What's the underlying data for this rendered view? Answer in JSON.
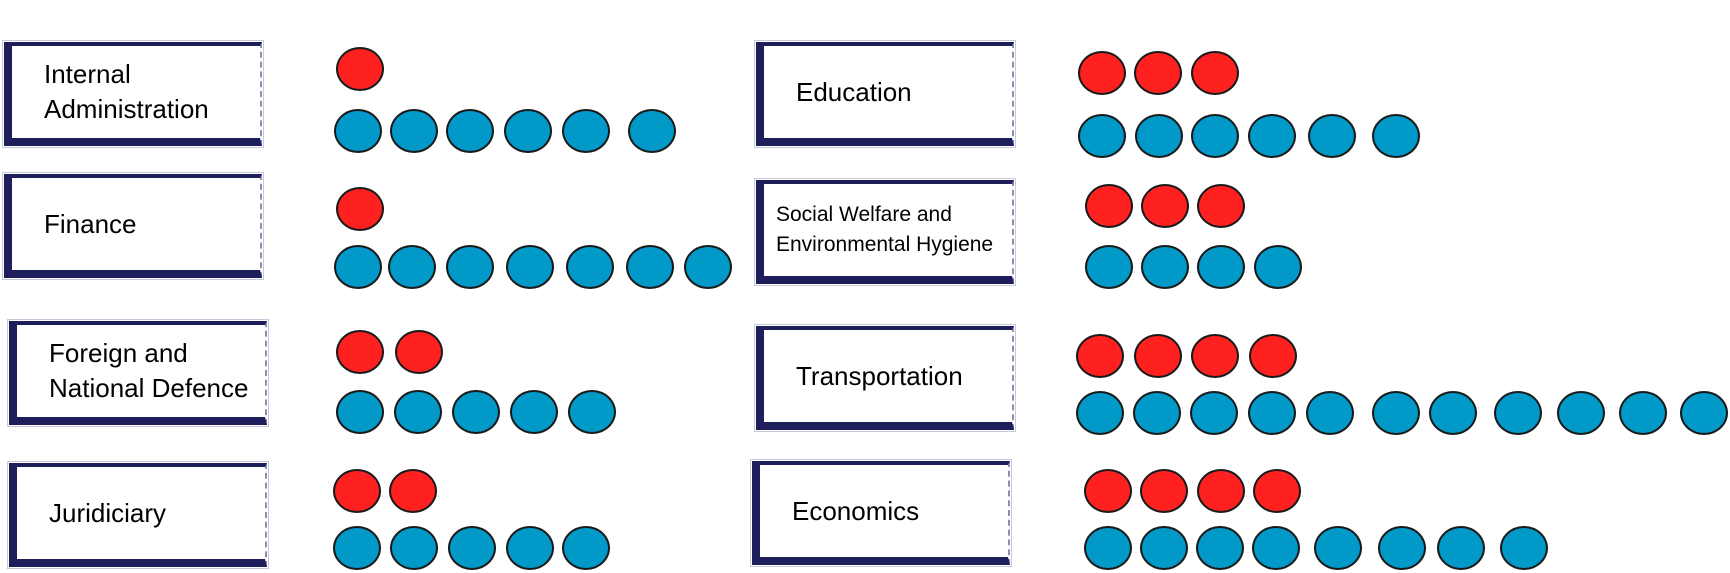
{
  "colors": {
    "red": "#ff2020",
    "blue": "#0099c8",
    "frame": "#1e1e5a"
  },
  "categories": [
    {
      "id": "internal-administration",
      "label": "Internal\nAdministration",
      "red": 1,
      "blue": 6
    },
    {
      "id": "finance",
      "label": "Finance",
      "red": 1,
      "blue": 7
    },
    {
      "id": "foreign-and-national-defence",
      "label": "Foreign and\nNational Defence",
      "red": 2,
      "blue": 5
    },
    {
      "id": "juridiciary",
      "label": "Juridiciary",
      "red": 2,
      "blue": 5
    },
    {
      "id": "education",
      "label": "Education",
      "red": 3,
      "blue": 6
    },
    {
      "id": "social-welfare",
      "label": "Social Welfare and\nEnvironmental Hygiene",
      "red": 3,
      "blue": 4
    },
    {
      "id": "transportation",
      "label": "Transportation",
      "red": 4,
      "blue": 11
    },
    {
      "id": "economics",
      "label": "Economics",
      "red": 4,
      "blue": 8
    }
  ]
}
